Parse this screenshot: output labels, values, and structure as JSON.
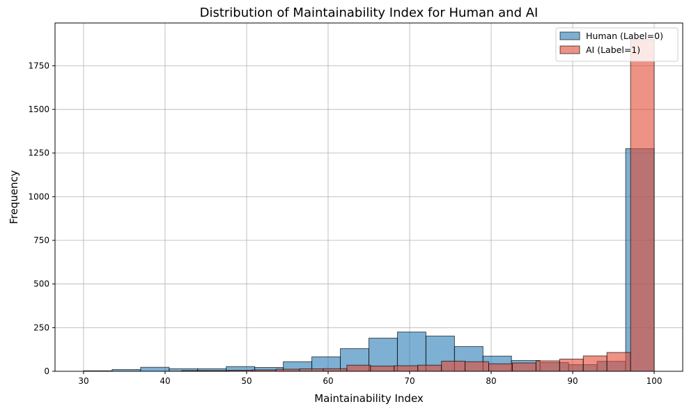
{
  "chart_data": {
    "type": "bar",
    "title": "Distribution of Maintainability Index for Human and AI",
    "xlabel": "Maintainability Index",
    "ylabel": "Frequency",
    "xlim": [
      26.5,
      103.5
    ],
    "ylim": [
      0,
      1995
    ],
    "xticks": [
      30,
      40,
      50,
      60,
      70,
      80,
      90,
      100
    ],
    "yticks": [
      0,
      250,
      500,
      750,
      1000,
      1250,
      1500,
      1750
    ],
    "grid": true,
    "legend_position": "top-right",
    "series": [
      {
        "name": "Human (Label=0)",
        "color": "#1f77b4",
        "bin_edges": [
          30.0,
          33.5,
          37.0,
          40.5,
          44.0,
          47.5,
          51.0,
          54.5,
          58.0,
          61.5,
          65.0,
          68.5,
          72.0,
          75.5,
          79.0,
          82.5,
          86.0,
          89.5,
          93.0,
          96.5,
          100.0
        ],
        "counts": [
          3,
          10,
          23,
          15,
          15,
          27,
          22,
          55,
          83,
          130,
          190,
          225,
          202,
          142,
          87,
          62,
          50,
          38,
          57,
          1275
        ]
      },
      {
        "name": "AI (Label=1)",
        "color": "#e34a33",
        "bin_edges": [
          42.0,
          44.9,
          47.8,
          50.7,
          53.6,
          56.5,
          59.4,
          62.3,
          65.2,
          68.1,
          71.0,
          73.9,
          76.8,
          79.7,
          82.6,
          85.5,
          88.4,
          91.3,
          94.2,
          97.1,
          100.0
        ],
        "counts": [
          4,
          4,
          6,
          8,
          12,
          14,
          15,
          35,
          30,
          32,
          35,
          58,
          55,
          43,
          48,
          60,
          70,
          88,
          108,
          1900
        ]
      }
    ]
  }
}
